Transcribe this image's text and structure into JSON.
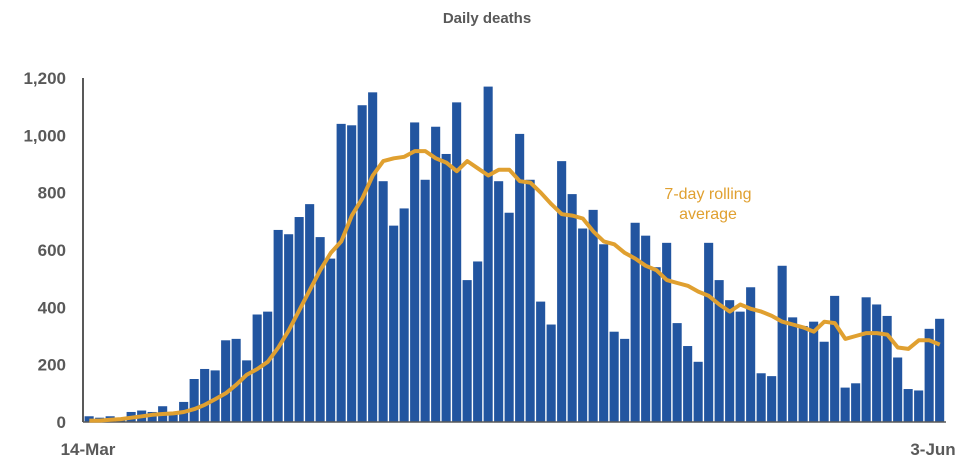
{
  "chart_data": {
    "type": "bar",
    "title": "Daily deaths",
    "xlabel": "",
    "ylabel": "",
    "ylim": [
      0,
      1200
    ],
    "yticks": [
      "0",
      "200",
      "400",
      "600",
      "800",
      "1,000",
      "1,200"
    ],
    "ytick_values": [
      0,
      200,
      400,
      600,
      800,
      1000,
      1200
    ],
    "x_start": "14-Mar",
    "x_end": "3-Jun",
    "x_tick_labels": [
      "14-Mar",
      "3-Jun"
    ],
    "grid": false,
    "series": [
      {
        "type": "bar",
        "color": "#2255A0",
        "values": [
          20,
          15,
          20,
          15,
          35,
          40,
          35,
          55,
          35,
          70,
          150,
          185,
          180,
          285,
          290,
          215,
          375,
          385,
          670,
          655,
          715,
          760,
          645,
          570,
          1040,
          1035,
          1105,
          1150,
          840,
          685,
          745,
          1045,
          845,
          1030,
          935,
          1115,
          495,
          560,
          1170,
          840,
          730,
          1005,
          845,
          420,
          340,
          910,
          795,
          675,
          740,
          620,
          315,
          290,
          695,
          650,
          540,
          625,
          345,
          265,
          210,
          625,
          495,
          425,
          385,
          470,
          170,
          160,
          545,
          365,
          335,
          350,
          280,
          440,
          120,
          135,
          435,
          410,
          370,
          225,
          115,
          110,
          325,
          360
        ]
      },
      {
        "type": "line",
        "name": "7-day rolling average",
        "color": "#E0A030",
        "values": [
          5,
          5,
          8,
          10,
          15,
          20,
          25,
          28,
          30,
          35,
          45,
          60,
          80,
          100,
          130,
          165,
          185,
          210,
          260,
          320,
          390,
          460,
          530,
          590,
          630,
          720,
          780,
          860,
          910,
          920,
          925,
          945,
          945,
          920,
          905,
          875,
          910,
          885,
          860,
          880,
          880,
          840,
          835,
          800,
          760,
          725,
          720,
          710,
          665,
          630,
          620,
          590,
          570,
          545,
          530,
          495,
          485,
          475,
          455,
          440,
          410,
          385,
          410,
          395,
          385,
          370,
          350,
          340,
          330,
          315,
          350,
          345,
          290,
          300,
          310,
          310,
          305,
          260,
          255,
          285,
          285,
          270
        ]
      }
    ],
    "annotation": [
      "7-day rolling",
      "average"
    ]
  }
}
